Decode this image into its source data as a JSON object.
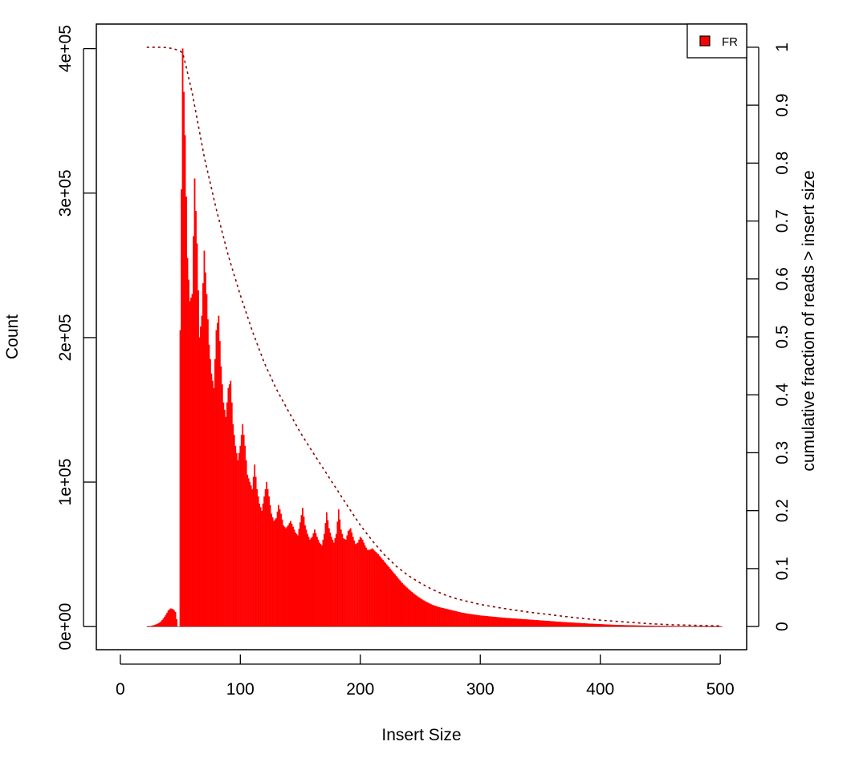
{
  "chart_data": {
    "type": "bar",
    "title": "",
    "xlabel": "Insert Size",
    "ylabel": "Count",
    "y2label": "cumulative fraction of reads > insert size",
    "xlim": [
      -20,
      522
    ],
    "ylim": [
      -16000,
      417000
    ],
    "y2lim": [
      -0.04,
      1.04
    ],
    "x_ticks": [
      "0",
      "100",
      "200",
      "300",
      "400",
      "500"
    ],
    "y_ticks": [
      "0e+00",
      "1e+05",
      "2e+05",
      "3e+05",
      "4e+05"
    ],
    "y2_ticks": [
      "0",
      "0.1",
      "0.2",
      "0.3",
      "0.4",
      "0.5",
      "0.6",
      "0.7",
      "0.8",
      "0.9",
      "1"
    ],
    "bar_color": "#ff0000",
    "cumulative_color": "#8b0000",
    "grid": false,
    "legend": {
      "position": "top-right",
      "entries": [
        {
          "label": "FR",
          "color": "#ff0000"
        }
      ]
    },
    "series": [
      {
        "name": "FR",
        "type": "bar",
        "x": [
          22,
          24,
          26,
          28,
          30,
          32,
          34,
          36,
          38,
          40,
          42,
          44,
          46,
          48,
          50,
          52,
          54,
          56,
          58,
          60,
          62,
          64,
          66,
          68,
          70,
          72,
          74,
          76,
          78,
          80,
          82,
          84,
          86,
          88,
          90,
          92,
          94,
          96,
          98,
          100,
          102,
          104,
          106,
          108,
          110,
          112,
          114,
          116,
          118,
          120,
          122,
          124,
          126,
          128,
          130,
          132,
          134,
          136,
          138,
          140,
          142,
          144,
          146,
          148,
          150,
          152,
          154,
          156,
          158,
          160,
          162,
          164,
          166,
          168,
          170,
          172,
          174,
          176,
          178,
          180,
          182,
          184,
          186,
          188,
          190,
          192,
          194,
          196,
          198,
          200,
          202,
          204,
          206,
          208,
          210,
          215,
          220,
          225,
          230,
          235,
          240,
          245,
          250,
          255,
          260,
          265,
          270,
          275,
          280,
          285,
          290,
          295,
          300,
          310,
          320,
          330,
          340,
          350,
          360,
          370,
          380,
          390,
          400,
          410,
          420,
          430,
          440,
          450,
          460,
          470,
          480,
          490,
          500
        ],
        "values": [
          0,
          100,
          400,
          900,
          1500,
          2200,
          3500,
          5500,
          8000,
          11000,
          12500,
          12000,
          10000,
          0,
          205000,
          400000,
          340000,
          255000,
          225000,
          230000,
          310000,
          265000,
          200000,
          215000,
          260000,
          230000,
          195000,
          175000,
          165000,
          205000,
          215000,
          180000,
          155000,
          145000,
          165000,
          170000,
          140000,
          125000,
          115000,
          125000,
          140000,
          125000,
          105000,
          100000,
          95000,
          112000,
          95000,
          85000,
          80000,
          90000,
          100000,
          90000,
          78000,
          73000,
          75000,
          84000,
          78000,
          70000,
          68000,
          70000,
          73000,
          69000,
          65000,
          63000,
          72000,
          82000,
          70000,
          64000,
          60000,
          62000,
          67000,
          62000,
          58000,
          56000,
          64000,
          79000,
          68000,
          62000,
          58000,
          64000,
          81000,
          67000,
          61000,
          60000,
          66000,
          68000,
          62000,
          57000,
          58000,
          62000,
          60000,
          56000,
          53000,
          53000,
          54000,
          50000,
          45000,
          40000,
          35000,
          30000,
          26000,
          22500,
          19500,
          17000,
          15000,
          13500,
          12500,
          11500,
          10500,
          9500,
          8800,
          8200,
          7600,
          6800,
          6000,
          5400,
          4800,
          4200,
          3600,
          3000,
          2500,
          2000,
          1600,
          1200,
          900,
          700,
          500,
          400,
          300,
          250,
          200,
          150,
          100
        ]
      },
      {
        "name": "cumulative",
        "type": "line",
        "x": [
          22,
          30,
          35,
          40,
          45,
          50,
          52,
          55,
          60,
          65,
          70,
          75,
          80,
          90,
          100,
          110,
          120,
          130,
          140,
          150,
          160,
          170,
          180,
          190,
          200,
          210,
          220,
          230,
          240,
          250,
          260,
          270,
          280,
          290,
          300,
          320,
          340,
          360,
          380,
          400,
          420,
          440,
          460,
          480,
          500
        ],
        "values": [
          1.0,
          1.0,
          1.0,
          0.999,
          0.997,
          0.993,
          0.99,
          0.965,
          0.92,
          0.865,
          0.81,
          0.765,
          0.72,
          0.64,
          0.572,
          0.51,
          0.455,
          0.41,
          0.372,
          0.335,
          0.302,
          0.27,
          0.238,
          0.206,
          0.175,
          0.148,
          0.124,
          0.104,
          0.088,
          0.075,
          0.064,
          0.055,
          0.048,
          0.043,
          0.038,
          0.031,
          0.025,
          0.02,
          0.015,
          0.011,
          0.008,
          0.005,
          0.003,
          0.002,
          0.001
        ]
      }
    ]
  }
}
